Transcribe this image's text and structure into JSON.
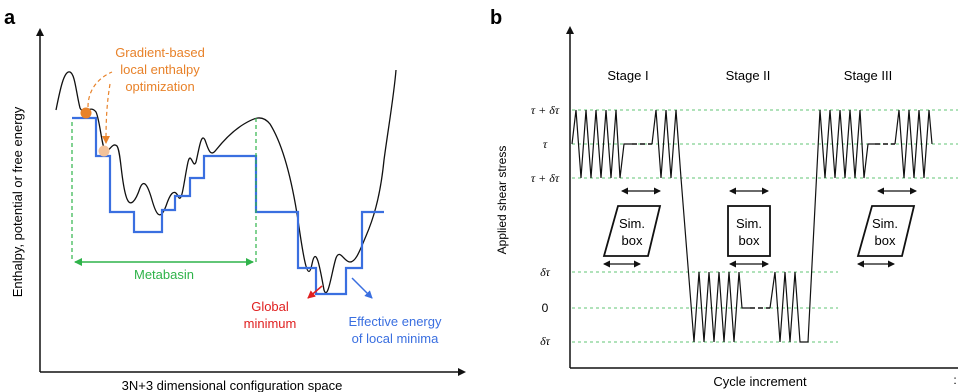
{
  "panel_a": {
    "letter": "a",
    "y_label": "Enthalpy, potential or free energy",
    "x_label": "3N+3 dimensional configuration space",
    "annotation_gradient": [
      "Gradient-based",
      "local enthalpy",
      "optimization"
    ],
    "annotation_metabasin": "Metabasin",
    "annotation_global": [
      "Global",
      "minimum"
    ],
    "annotation_effective": [
      "Effective energy",
      "of local minima"
    ],
    "colors": {
      "curve": "#111111",
      "effective": "#3a6fe0",
      "metabasin": "#2fb34a",
      "gradient": "#e8822a",
      "global": "#e02020"
    }
  },
  "panel_b": {
    "letter": "b",
    "y_label": "Applied shear stress",
    "x_label": "Cycle increment",
    "stages": [
      "Stage I",
      "Stage II",
      "Stage III"
    ],
    "y_ticks": [
      "τ + δτ",
      "τ",
      "τ + δτ",
      "δτ",
      "0",
      "δτ"
    ],
    "box_label": [
      "Sim.",
      "box"
    ],
    "stray_mark": ":"
  }
}
